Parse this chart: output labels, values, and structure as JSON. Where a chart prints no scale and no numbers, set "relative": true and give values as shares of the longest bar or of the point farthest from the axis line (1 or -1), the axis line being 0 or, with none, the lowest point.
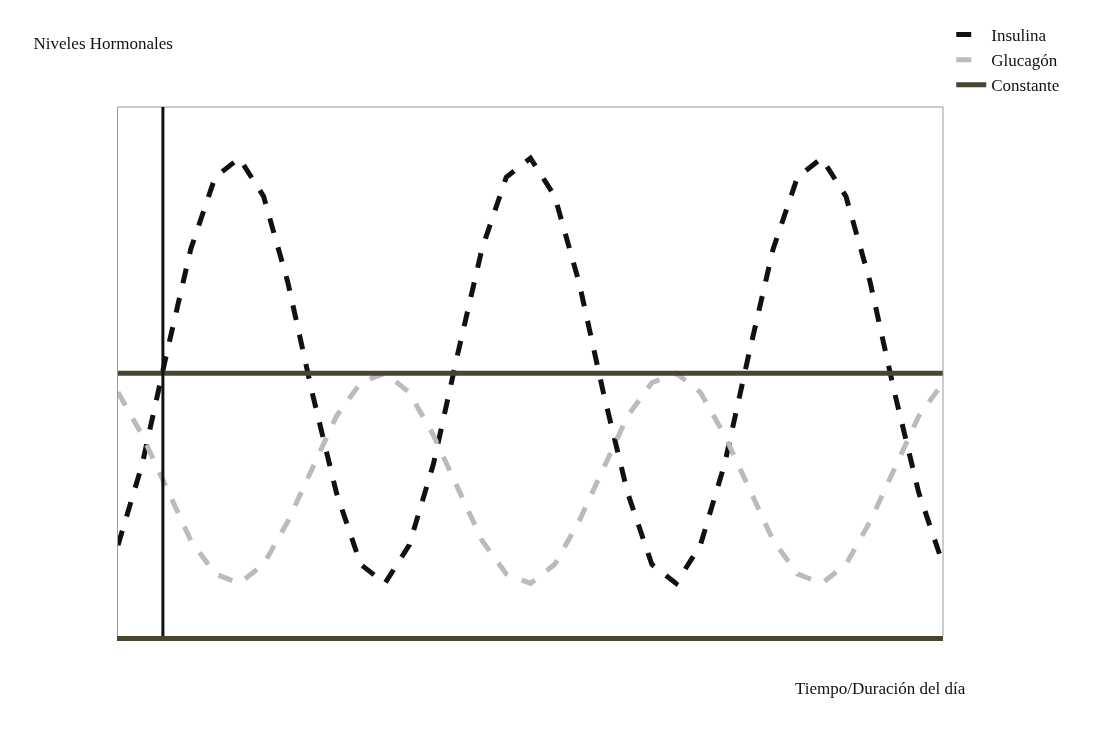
{
  "chart_data": {
    "type": "line",
    "relative": true,
    "title": "Niveles Hormonales",
    "annotations": [
      "Tiempo/Duración del día"
    ],
    "categories": [
      null,
      null,
      null,
      null,
      null,
      null,
      null,
      null,
      null,
      null,
      null,
      null,
      null,
      null,
      null,
      null,
      null,
      null,
      null,
      null,
      null,
      null,
      null,
      null,
      null,
      null,
      null,
      null,
      null,
      null,
      null,
      null,
      null,
      null,
      null
    ],
    "series": [
      {
        "name": "Insulina",
        "color": "#111111",
        "line_style": "dashed",
        "values": [
          0.19,
          0.36,
          0.59,
          0.81,
          0.96,
          1.0,
          0.92,
          0.74,
          0.51,
          0.3,
          0.15,
          0.11,
          0.19,
          0.36,
          0.59,
          0.81,
          0.96,
          1.0,
          0.92,
          0.74,
          0.51,
          0.3,
          0.15,
          0.11,
          0.19,
          0.36,
          0.59,
          0.81,
          0.96,
          1.0,
          0.92,
          0.74,
          0.51,
          0.3,
          0.15
        ]
      },
      {
        "name": "Glucagón",
        "color": "#bbbbbb",
        "line_style": "dashed",
        "values": [
          0.51,
          0.42,
          0.31,
          0.2,
          0.13,
          0.11,
          0.15,
          0.24,
          0.35,
          0.46,
          0.53,
          0.55,
          0.51,
          0.42,
          0.31,
          0.2,
          0.13,
          0.11,
          0.15,
          0.24,
          0.35,
          0.46,
          0.53,
          0.55,
          0.51,
          0.42,
          0.31,
          0.2,
          0.13,
          0.11,
          0.15,
          0.24,
          0.35,
          0.46,
          0.53
        ]
      },
      {
        "name": "Constante",
        "color": "#4a4530",
        "line_style": "solid",
        "values": [
          0.55,
          0.55,
          0.55,
          0.55,
          0.55,
          0.55,
          0.55,
          0.55,
          0.55,
          0.55,
          0.55,
          0.55,
          0.55,
          0.55,
          0.55,
          0.55,
          0.55,
          0.55,
          0.55,
          0.55,
          0.55,
          0.55,
          0.55,
          0.55,
          0.55,
          0.55,
          0.55,
          0.55,
          0.55,
          0.55,
          0.55,
          0.55,
          0.55,
          0.55,
          0.55
        ]
      }
    ],
    "legend": "top right",
    "grid": false,
    "marker": "none",
    "tick_labels": false
  }
}
